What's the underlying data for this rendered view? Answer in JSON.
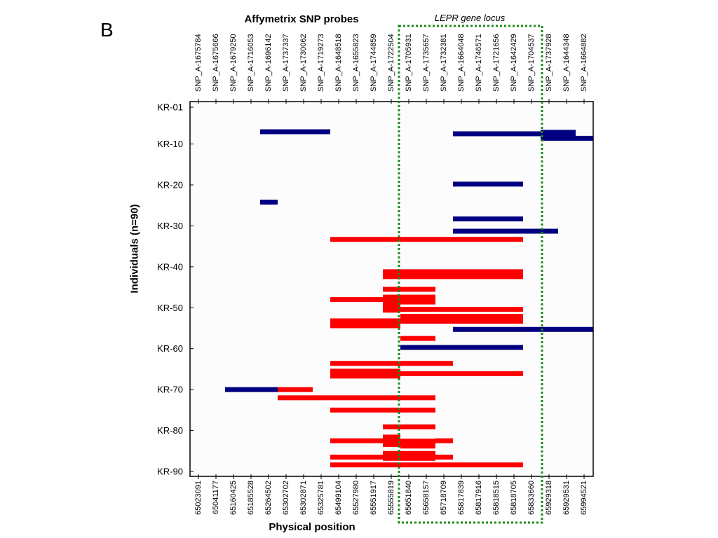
{
  "panel_label": "B",
  "chart_data": {
    "type": "bar",
    "title": "Affymetrix SNP probes",
    "region_label": "LEPR gene locus",
    "xlabel": "Physical position",
    "ylabel": "Individuals (n=90)",
    "snp_probes": [
      "SNP_A-1675784",
      "SNP_A-1675666",
      "SNP_A-1679250",
      "SNP_A-1716053",
      "SNP_A-1696142",
      "SNP_A-1737337",
      "SNP_A-1730062",
      "SNP_A-1719273",
      "SNP_A-1648518",
      "SNP_A-1655823",
      "SNP_A-1744859",
      "SNP_A-1722504",
      "SNP_A-1705931",
      "SNP_A-1735657",
      "SNP_A-1732381",
      "SNP_A-1664048",
      "SNP_A-1746571",
      "SNP_A-1721656",
      "SNP_A-1642429",
      "SNP_A-1704537",
      "SNP_A-1737928",
      "SNP_A-1644348",
      "SNP_A-1664882"
    ],
    "positions": [
      "65023091",
      "65041177",
      "65160425",
      "65185528",
      "65264502",
      "65302702",
      "65302871",
      "65325781",
      "65499104",
      "65527980",
      "65551917",
      "65555819",
      "65651840",
      "65658157",
      "65718709",
      "65817839",
      "65817916",
      "65818515",
      "65818705",
      "65833660",
      "65929318",
      "65929531",
      "65994521"
    ],
    "y_tick_labels": [
      "KR-01",
      "KR-10",
      "KR-20",
      "KR-30",
      "KR-40",
      "KR-50",
      "KR-60",
      "KR-70",
      "KR-80",
      "KR-90"
    ],
    "y_tick_individuals": [
      1,
      10,
      20,
      30,
      40,
      50,
      60,
      70,
      80,
      90
    ],
    "highlight_region": {
      "from_probe": 12,
      "to_probe": 19
    },
    "colors": {
      "blue": "#000080",
      "red": "#ff0000",
      "region": "#1a8c1a",
      "frame": "#000000"
    },
    "segments": [
      {
        "ind": 7,
        "from": 4,
        "to": 8,
        "color": "blue",
        "thick": 1
      },
      {
        "ind": 7.5,
        "from": 15,
        "to": 20,
        "color": "blue",
        "thick": 1
      },
      {
        "ind": 7.5,
        "from": 20,
        "to": 22,
        "color": "blue",
        "thick": 1.6
      },
      {
        "ind": 8.6,
        "from": 20,
        "to": 23,
        "color": "blue",
        "thick": 1
      },
      {
        "ind": 19.8,
        "from": 15,
        "to": 19,
        "color": "blue",
        "thick": 1
      },
      {
        "ind": 24.2,
        "from": 4,
        "to": 5,
        "color": "blue",
        "thick": 1
      },
      {
        "ind": 28.3,
        "from": 15,
        "to": 19,
        "color": "blue",
        "thick": 1
      },
      {
        "ind": 31.3,
        "from": 15,
        "to": 21,
        "color": "blue",
        "thick": 1
      },
      {
        "ind": 33.3,
        "from": 8,
        "to": 19,
        "color": "red",
        "thick": 1
      },
      {
        "ind": 41.8,
        "from": 11,
        "to": 19,
        "color": "red",
        "thick": 2
      },
      {
        "ind": 45.5,
        "from": 11,
        "to": 14,
        "color": "red",
        "thick": 1
      },
      {
        "ind": 48,
        "from": 8,
        "to": 11,
        "color": "red",
        "thick": 1
      },
      {
        "ind": 48,
        "from": 11,
        "to": 14,
        "color": "red",
        "thick": 2
      },
      {
        "ind": 50,
        "from": 11,
        "to": 12,
        "color": "red",
        "thick": 2
      },
      {
        "ind": 50.4,
        "from": 12,
        "to": 19,
        "color": "red",
        "thick": 1
      },
      {
        "ind": 52.7,
        "from": 12,
        "to": 19,
        "color": "red",
        "thick": 2
      },
      {
        "ind": 53.8,
        "from": 8,
        "to": 12,
        "color": "red",
        "thick": 2
      },
      {
        "ind": 55.3,
        "from": 15,
        "to": 23,
        "color": "blue",
        "thick": 1
      },
      {
        "ind": 57.5,
        "from": 12,
        "to": 14,
        "color": "red",
        "thick": 1
      },
      {
        "ind": 59.7,
        "from": 12,
        "to": 19,
        "color": "blue",
        "thick": 1
      },
      {
        "ind": 63.6,
        "from": 8,
        "to": 15,
        "color": "red",
        "thick": 1
      },
      {
        "ind": 66.1,
        "from": 8,
        "to": 12,
        "color": "red",
        "thick": 2
      },
      {
        "ind": 66.1,
        "from": 12,
        "to": 19,
        "color": "red",
        "thick": 1
      },
      {
        "ind": 70,
        "from": 2,
        "to": 5,
        "color": "blue",
        "thick": 1
      },
      {
        "ind": 70,
        "from": 5,
        "to": 7,
        "color": "red",
        "thick": 1
      },
      {
        "ind": 72,
        "from": 5,
        "to": 14,
        "color": "red",
        "thick": 1
      },
      {
        "ind": 75,
        "from": 8,
        "to": 14,
        "color": "red",
        "thick": 1
      },
      {
        "ind": 79.1,
        "from": 11,
        "to": 14,
        "color": "red",
        "thick": 1
      },
      {
        "ind": 82.5,
        "from": 8,
        "to": 11,
        "color": "red",
        "thick": 1
      },
      {
        "ind": 82.5,
        "from": 11,
        "to": 12,
        "color": "red",
        "thick": 2.5
      },
      {
        "ind": 83.2,
        "from": 12,
        "to": 14,
        "color": "red",
        "thick": 2
      },
      {
        "ind": 82.5,
        "from": 14,
        "to": 15,
        "color": "red",
        "thick": 1
      },
      {
        "ind": 86.5,
        "from": 8,
        "to": 11,
        "color": "red",
        "thick": 1
      },
      {
        "ind": 86.2,
        "from": 11,
        "to": 14,
        "color": "red",
        "thick": 2
      },
      {
        "ind": 86.5,
        "from": 14,
        "to": 15,
        "color": "red",
        "thick": 1
      },
      {
        "ind": 88.4,
        "from": 8,
        "to": 19,
        "color": "red",
        "thick": 1
      }
    ]
  }
}
